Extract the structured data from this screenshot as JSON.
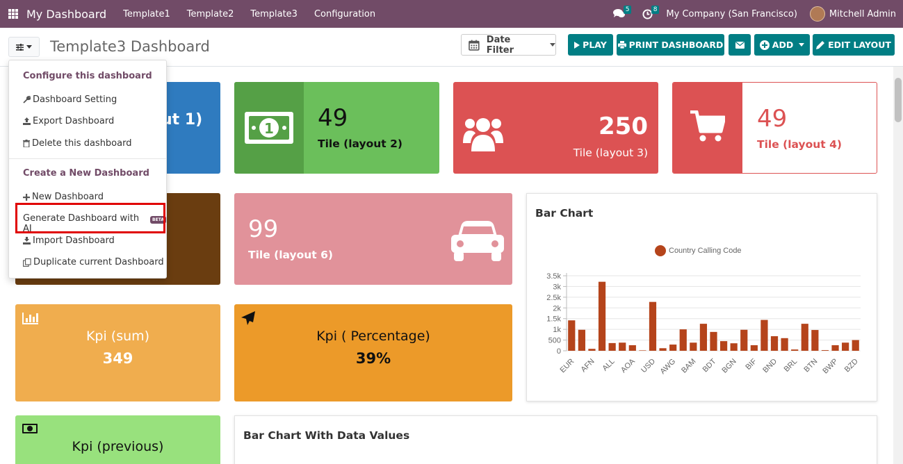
{
  "navbar": {
    "brand": "My Dashboard",
    "menu": [
      "Template1",
      "Template2",
      "Template3",
      "Configuration"
    ],
    "messages_count": "5",
    "activities_count": "8",
    "company": "My Company (San Francisco)",
    "user": "Mitchell Admin"
  },
  "control": {
    "page_title": "Template3 Dashboard",
    "date_filter": "Date Filter",
    "play": "PLAY",
    "print": "PRINT DASHBOARD",
    "add": "ADD",
    "edit_layout": "EDIT LAYOUT"
  },
  "menu": {
    "configure_header": "Configure this dashboard",
    "dashboard_setting": "Dashboard Setting",
    "export_dashboard": "Export Dashboard",
    "delete_dashboard": "Delete this dashboard",
    "create_header": "Create a New Dashboard",
    "new_dashboard": "New Dashboard",
    "generate_ai": "Generate Dashboard with AI",
    "beta": "BETA",
    "import_dashboard": "Import Dashboard",
    "duplicate_dashboard": "Duplicate current Dashboard"
  },
  "tiles": {
    "t1_label": "ut 1)",
    "t2_value": "49",
    "t2_label": "Tile (layout 2)",
    "t3_value": "250",
    "t3_label": "Tile (layout 3)",
    "t4_value": "49",
    "t4_label": "Tile (layout 4)",
    "t6_value": "99",
    "t6_label": "Tile (layout 6)"
  },
  "kpis": {
    "sum_label": "Kpi (sum)",
    "sum_value": "349",
    "pct_label": "Kpi ( Percentage)",
    "pct_value": "39%",
    "prev_label": "Kpi (previous)"
  },
  "colors": {
    "navbar": "#714b67",
    "accent": "#017e84",
    "bar": "#b5441b"
  },
  "charts": {
    "bar_title": "Bar Chart",
    "bar_values_title": "Bar Chart With Data Values"
  },
  "chart_data": {
    "type": "bar",
    "title": "Bar Chart",
    "legend": "top",
    "series": [
      {
        "name": "Country Calling Code"
      }
    ],
    "categories": [
      "EUR",
      "",
      "AFN",
      "",
      "ALL",
      "",
      "AOA",
      "",
      "USD",
      "",
      "AWG",
      "",
      "BAM",
      "",
      "BDT",
      "",
      "BGN",
      "",
      "BIF",
      "",
      "BND",
      "",
      "BRL",
      "",
      "BTN",
      "",
      "BWP",
      "",
      "BZD"
    ],
    "values": [
      1420,
      980,
      90,
      3220,
      360,
      380,
      260,
      20,
      2280,
      120,
      290,
      1000,
      380,
      1260,
      880,
      450,
      350,
      980,
      260,
      1440,
      680,
      590,
      60,
      1260,
      970,
      30,
      260,
      380,
      500
    ],
    "ytick_labels": [
      "0",
      "500",
      "1k",
      "1.5k",
      "2k",
      "2.5k",
      "3k",
      "3.5k"
    ],
    "ylim": [
      0,
      3500
    ]
  }
}
